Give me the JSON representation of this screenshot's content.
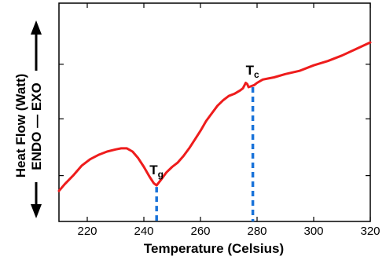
{
  "chart_data": {
    "type": "line",
    "xlabel": "Temperature (Celsius)",
    "ylabel_main": "Heat Flow (Watt)",
    "ylabel_sub": "ENDO — EXO",
    "xlim": [
      210,
      320
    ],
    "ylim": [
      0,
      100
    ],
    "x_ticks": [
      220,
      240,
      260,
      280,
      300,
      320
    ],
    "y_ticks_unlabeled": [
      21,
      47,
      72
    ],
    "series": [
      {
        "color": "#ee1c1c",
        "x": [
          210,
          212,
          215,
          218,
          221,
          224,
          227,
          230,
          232,
          234,
          236,
          238,
          240,
          242,
          243.5,
          244.5,
          246,
          248,
          250,
          252,
          254,
          256,
          258,
          260,
          262,
          264,
          266,
          268,
          270,
          272,
          274,
          275,
          276,
          276.5,
          277,
          278,
          279,
          280,
          282,
          284,
          286,
          290,
          295,
          300,
          305,
          310,
          315,
          320
        ],
        "y": [
          14,
          17,
          21,
          25.5,
          28.5,
          30.5,
          32,
          33,
          33.5,
          33.5,
          32,
          29,
          25,
          20.5,
          17.5,
          16.5,
          19,
          22.5,
          25,
          27,
          30,
          33.5,
          37.5,
          41.5,
          46,
          49.5,
          53,
          55.5,
          57.5,
          58.5,
          60,
          61,
          63.5,
          63,
          61.5,
          62,
          62.5,
          63.5,
          65,
          65.5,
          66,
          67.5,
          69,
          71.5,
          73.5,
          76,
          79,
          82
        ]
      }
    ],
    "annotations": [
      {
        "main": "T",
        "sub": "g",
        "x": 244.5,
        "line_color": "#1a73d9"
      },
      {
        "main": "T",
        "sub": "c",
        "x": 278.5,
        "line_color": "#1a73d9"
      }
    ]
  }
}
